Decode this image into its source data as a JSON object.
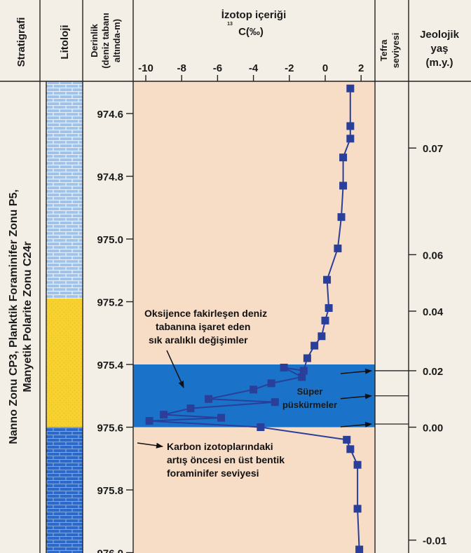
{
  "colors": {
    "plot_bg": "#f7dcc6",
    "event_band": "#1a73c8",
    "series": "#2a3f9a",
    "litho_light": "#9fc2ea",
    "litho_yellow": "#f6d230",
    "litho_dark": "#2d69c9",
    "text": "#1a1a1a"
  },
  "headers": {
    "stratigraphy": "Stratigrafi",
    "lithology": "Litoloji",
    "depth_line1": "Derinlik",
    "depth_line2": "(deniz tabanı",
    "depth_line3": "altında-m)",
    "isotope_line1": "İzotop içeriği",
    "isotope_sup": "13",
    "isotope_line2": "C(‰)",
    "tephra_line1": "Tefra",
    "tephra_line2": "seviyesi",
    "age_line1": "Jeolojik",
    "age_line2": "yaş",
    "age_line3": "(m.y.)"
  },
  "stratigraphy_text": {
    "line1": "Nanno Zonu CP3, Planktik Foraminifer Zonu P5,",
    "line2": "Manyetik Polarite Zonu C24r"
  },
  "annotations": {
    "oxygen_line1": "Oksijence fakirleşen deniz",
    "oxygen_line2": "tabanına işaret eden",
    "oxygen_line3": "sık aralıklı değişimler",
    "super_line1": "Süper",
    "super_line2": "püskürmeler",
    "carbon_line1": "Karbon izotoplarındaki",
    "carbon_line2": "artış öncesi en üst bentik",
    "carbon_line3": "foraminifer seviyesi"
  },
  "chart_data": {
    "type": "line",
    "x_label": "",
    "x_ticks": [
      -10,
      -8,
      -6,
      -4,
      -2,
      0,
      2
    ],
    "xlim": [
      -10.5,
      2.8
    ],
    "depth_ticks": [
      974.6,
      974.8,
      975.0,
      975.2,
      975.4,
      975.6,
      975.8,
      976.0
    ],
    "ylim": [
      974.48,
      976.04
    ],
    "age_ticks": [
      0.07,
      0.06,
      0.04,
      0.02,
      0.0,
      -0.01
    ],
    "age_depths": [
      974.71,
      975.05,
      975.23,
      975.42,
      975.6,
      975.96
    ],
    "event_band_depth": [
      975.4,
      975.6
    ],
    "tephra_level_depths": [
      975.42,
      975.5,
      975.59
    ],
    "lithology": [
      {
        "unit": "light-blue-brick",
        "from": 974.48,
        "to": 975.19
      },
      {
        "unit": "yellow",
        "from": 975.19,
        "to": 975.6
      },
      {
        "unit": "dark-blue-brick",
        "from": 975.6,
        "to": 976.04
      }
    ],
    "series": [
      {
        "points": [
          {
            "x": 1.4,
            "y": 974.52
          },
          {
            "x": 1.4,
            "y": 974.64
          },
          {
            "x": 1.4,
            "y": 974.68
          },
          {
            "x": 1.0,
            "y": 974.74
          },
          {
            "x": 1.0,
            "y": 974.83
          },
          {
            "x": 0.9,
            "y": 974.93
          },
          {
            "x": 0.7,
            "y": 975.03
          },
          {
            "x": 0.1,
            "y": 975.13
          },
          {
            "x": 0.2,
            "y": 975.22
          },
          {
            "x": 0.0,
            "y": 975.26
          },
          {
            "x": -0.2,
            "y": 975.31
          },
          {
            "x": -0.6,
            "y": 975.34
          },
          {
            "x": -1.0,
            "y": 975.38
          },
          {
            "x": -1.2,
            "y": 975.42
          },
          {
            "x": -2.3,
            "y": 975.41
          },
          {
            "x": -1.3,
            "y": 975.44
          },
          {
            "x": -3.0,
            "y": 975.46
          },
          {
            "x": -4.0,
            "y": 975.48
          },
          {
            "x": -6.5,
            "y": 975.51
          },
          {
            "x": -2.8,
            "y": 975.52
          },
          {
            "x": -7.5,
            "y": 975.54
          },
          {
            "x": -9.0,
            "y": 975.56
          },
          {
            "x": -5.8,
            "y": 975.57
          },
          {
            "x": -9.8,
            "y": 975.58
          },
          {
            "x": -3.6,
            "y": 975.6
          },
          {
            "x": 1.2,
            "y": 975.64
          },
          {
            "x": 1.4,
            "y": 975.67
          },
          {
            "x": 1.8,
            "y": 975.72
          },
          {
            "x": 1.8,
            "y": 975.86
          },
          {
            "x": 1.9,
            "y": 975.99
          }
        ]
      }
    ]
  }
}
